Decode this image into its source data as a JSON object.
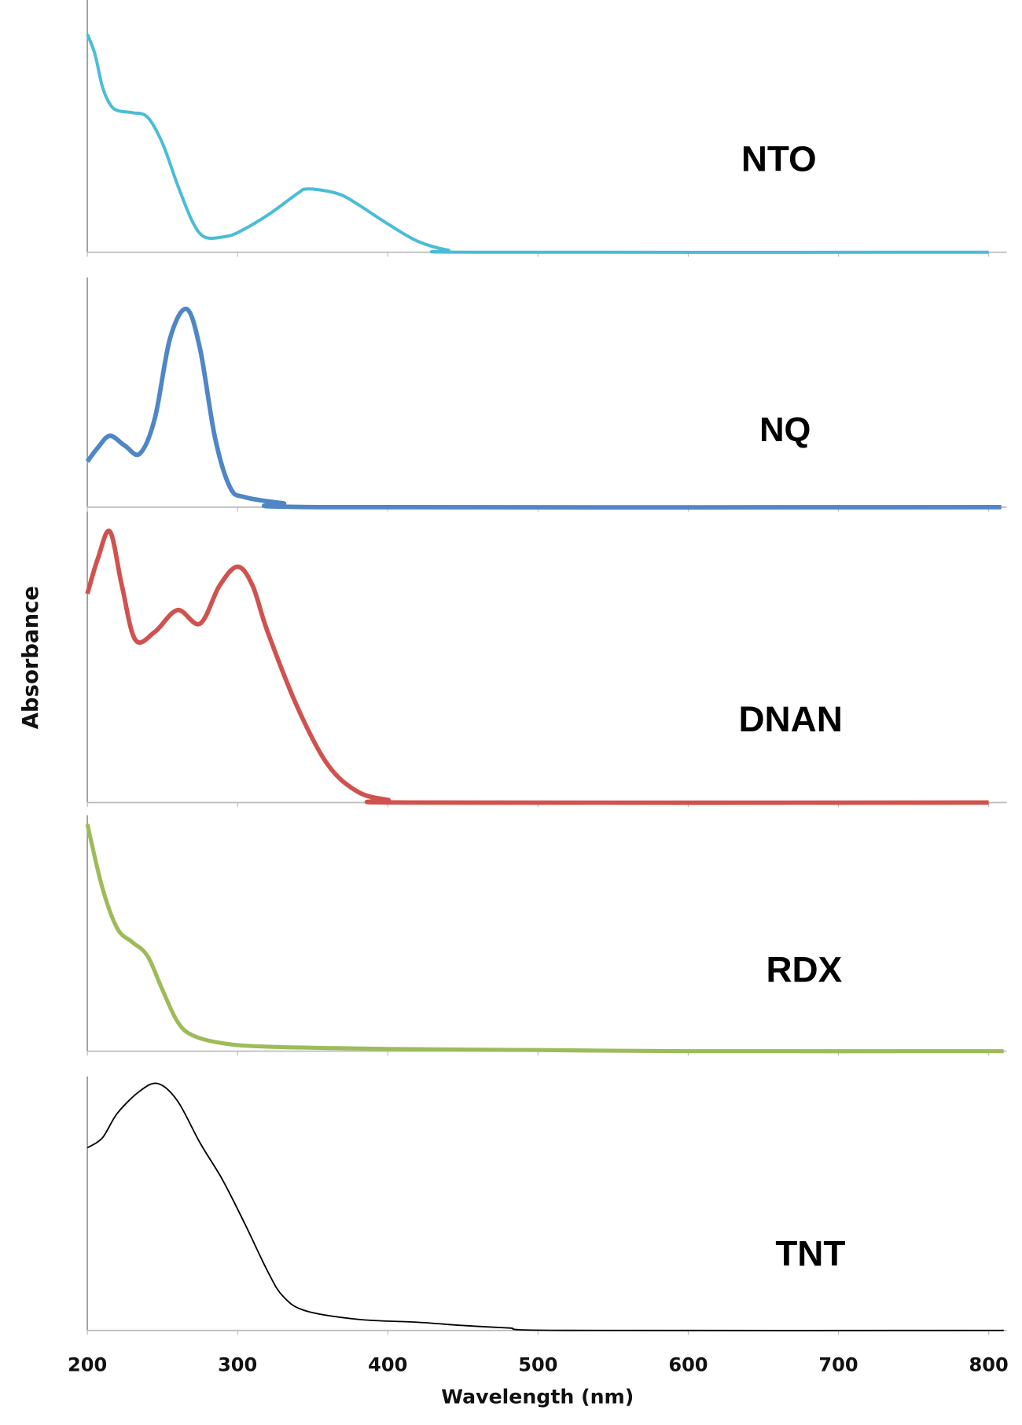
{
  "chart_data": {
    "type": "line",
    "xlabel": "Wavelength (nm)",
    "ylabel": "Absorbance",
    "xlim": [
      200,
      810
    ],
    "xticks": [
      "200",
      "300",
      "400",
      "500",
      "600",
      "700",
      "800"
    ],
    "grid": false,
    "y_scale": "relative absorbance, each panel normalized (no y ticks)",
    "panels": [
      {
        "name": "NTO",
        "color": "#4bbcd6",
        "x": [
          200,
          205,
          210,
          215,
          220,
          230,
          240,
          250,
          260,
          270,
          278,
          290,
          300,
          320,
          340,
          346,
          360,
          370,
          380,
          400,
          420,
          440,
          460,
          800
        ],
        "y": [
          1.0,
          0.91,
          0.76,
          0.68,
          0.65,
          0.64,
          0.62,
          0.5,
          0.31,
          0.14,
          0.07,
          0.07,
          0.09,
          0.17,
          0.27,
          0.29,
          0.28,
          0.26,
          0.22,
          0.13,
          0.05,
          0.01,
          0,
          0
        ]
      },
      {
        "name": "NQ",
        "color": "#4f86c6",
        "x": [
          200,
          207,
          215,
          225,
          235,
          245,
          255,
          266,
          275,
          285,
          295,
          305,
          330,
          360,
          810
        ],
        "y": [
          0.23,
          0.3,
          0.36,
          0.31,
          0.27,
          0.45,
          0.85,
          1.0,
          0.8,
          0.35,
          0.1,
          0.05,
          0.02,
          0,
          0
        ]
      },
      {
        "name": "DNAN",
        "color": "#d0524f",
        "x": [
          200,
          207,
          215,
          223,
          232,
          245,
          260,
          275,
          288,
          300,
          310,
          320,
          340,
          360,
          380,
          400,
          420,
          800
        ],
        "y": [
          0.77,
          0.9,
          1.0,
          0.8,
          0.6,
          0.63,
          0.71,
          0.66,
          0.8,
          0.87,
          0.8,
          0.63,
          0.35,
          0.14,
          0.04,
          0.01,
          0,
          0
        ]
      },
      {
        "name": "RDX",
        "color": "#9dbb59",
        "x": [
          200,
          210,
          220,
          230,
          240,
          250,
          260,
          270,
          290,
          320,
          400,
          500,
          600,
          810
        ],
        "y": [
          1.0,
          0.72,
          0.54,
          0.48,
          0.42,
          0.27,
          0.13,
          0.07,
          0.035,
          0.02,
          0.01,
          0.005,
          0,
          0
        ]
      },
      {
        "name": "TNT",
        "color": "#000000",
        "x": [
          200,
          210,
          220,
          235,
          247,
          260,
          275,
          290,
          305,
          320,
          330,
          345,
          380,
          420,
          450,
          480,
          520,
          810
        ],
        "y": [
          0.74,
          0.78,
          0.88,
          0.97,
          1.0,
          0.93,
          0.76,
          0.61,
          0.43,
          0.24,
          0.14,
          0.08,
          0.045,
          0.033,
          0.02,
          0.01,
          0,
          0
        ]
      }
    ]
  }
}
